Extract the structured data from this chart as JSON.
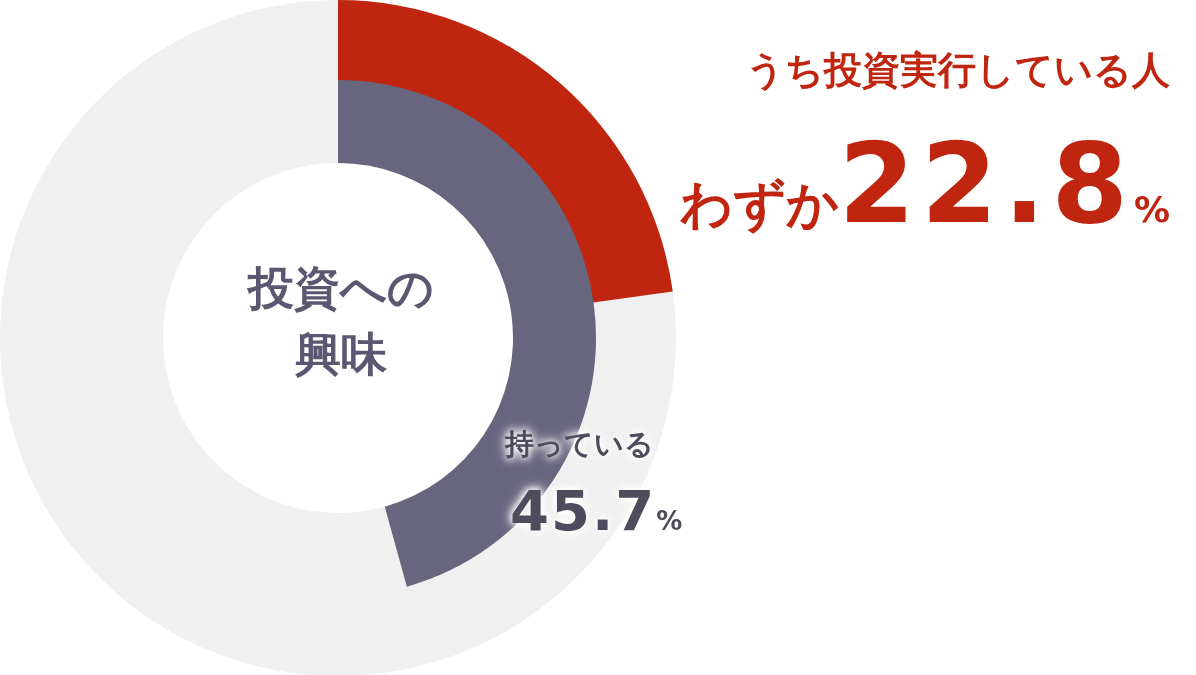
{
  "chart_data": {
    "type": "donut",
    "title": "投資への興味",
    "categories": [
      null,
      null
    ],
    "series": [
      {
        "name": "うち投資実行している人",
        "values": [
          22.8,
          77.2
        ],
        "colors": [
          "#c0250f",
          "#f0f0f0"
        ],
        "value_labels": [
          "わずか22.8%",
          null
        ]
      },
      {
        "name": "持っている",
        "values": [
          45.7,
          54.3
        ],
        "colors": [
          "#68657f",
          "#f0f0f0"
        ],
        "value_labels": [
          "45.7%",
          null
        ]
      }
    ],
    "legend": false
  }
}
